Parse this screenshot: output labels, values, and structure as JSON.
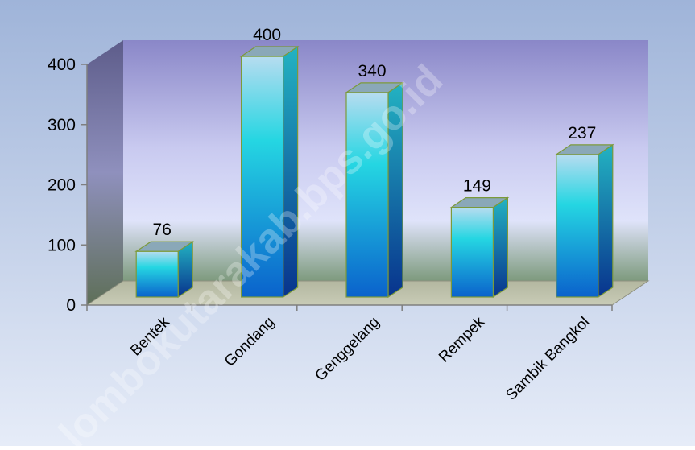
{
  "chart_data": {
    "type": "bar",
    "title": "",
    "xlabel": "",
    "ylabel": "",
    "categories": [
      "Bentek",
      "Gondang",
      "Genggelang",
      "Rempek",
      "Sambik Bangkol"
    ],
    "values": [
      76,
      400,
      340,
      149,
      237
    ],
    "ylim": [
      0,
      400
    ],
    "yticks": [
      0,
      100,
      200,
      300,
      400
    ],
    "data_labels": [
      "76",
      "400",
      "340",
      "149",
      "237"
    ],
    "tick_labels": [
      "0",
      "100",
      "200",
      "300",
      "400"
    ],
    "grid": false,
    "legend": "none",
    "style": "3d-column",
    "colors": {
      "bar_top": "#b7dcf0",
      "bar_mid": "#25d6e2",
      "bar_bottom": "#0a62cc",
      "bar_side_top": "#23b3c2",
      "bar_side_bottom": "#08338d",
      "bar_cap": "#8aa8b8",
      "bar_outline": "#7c9a3a",
      "background_top": "#9fb4d9",
      "background_bottom": "#e6ecf8"
    }
  },
  "watermark": "lombokutarakab.bps.go.id"
}
